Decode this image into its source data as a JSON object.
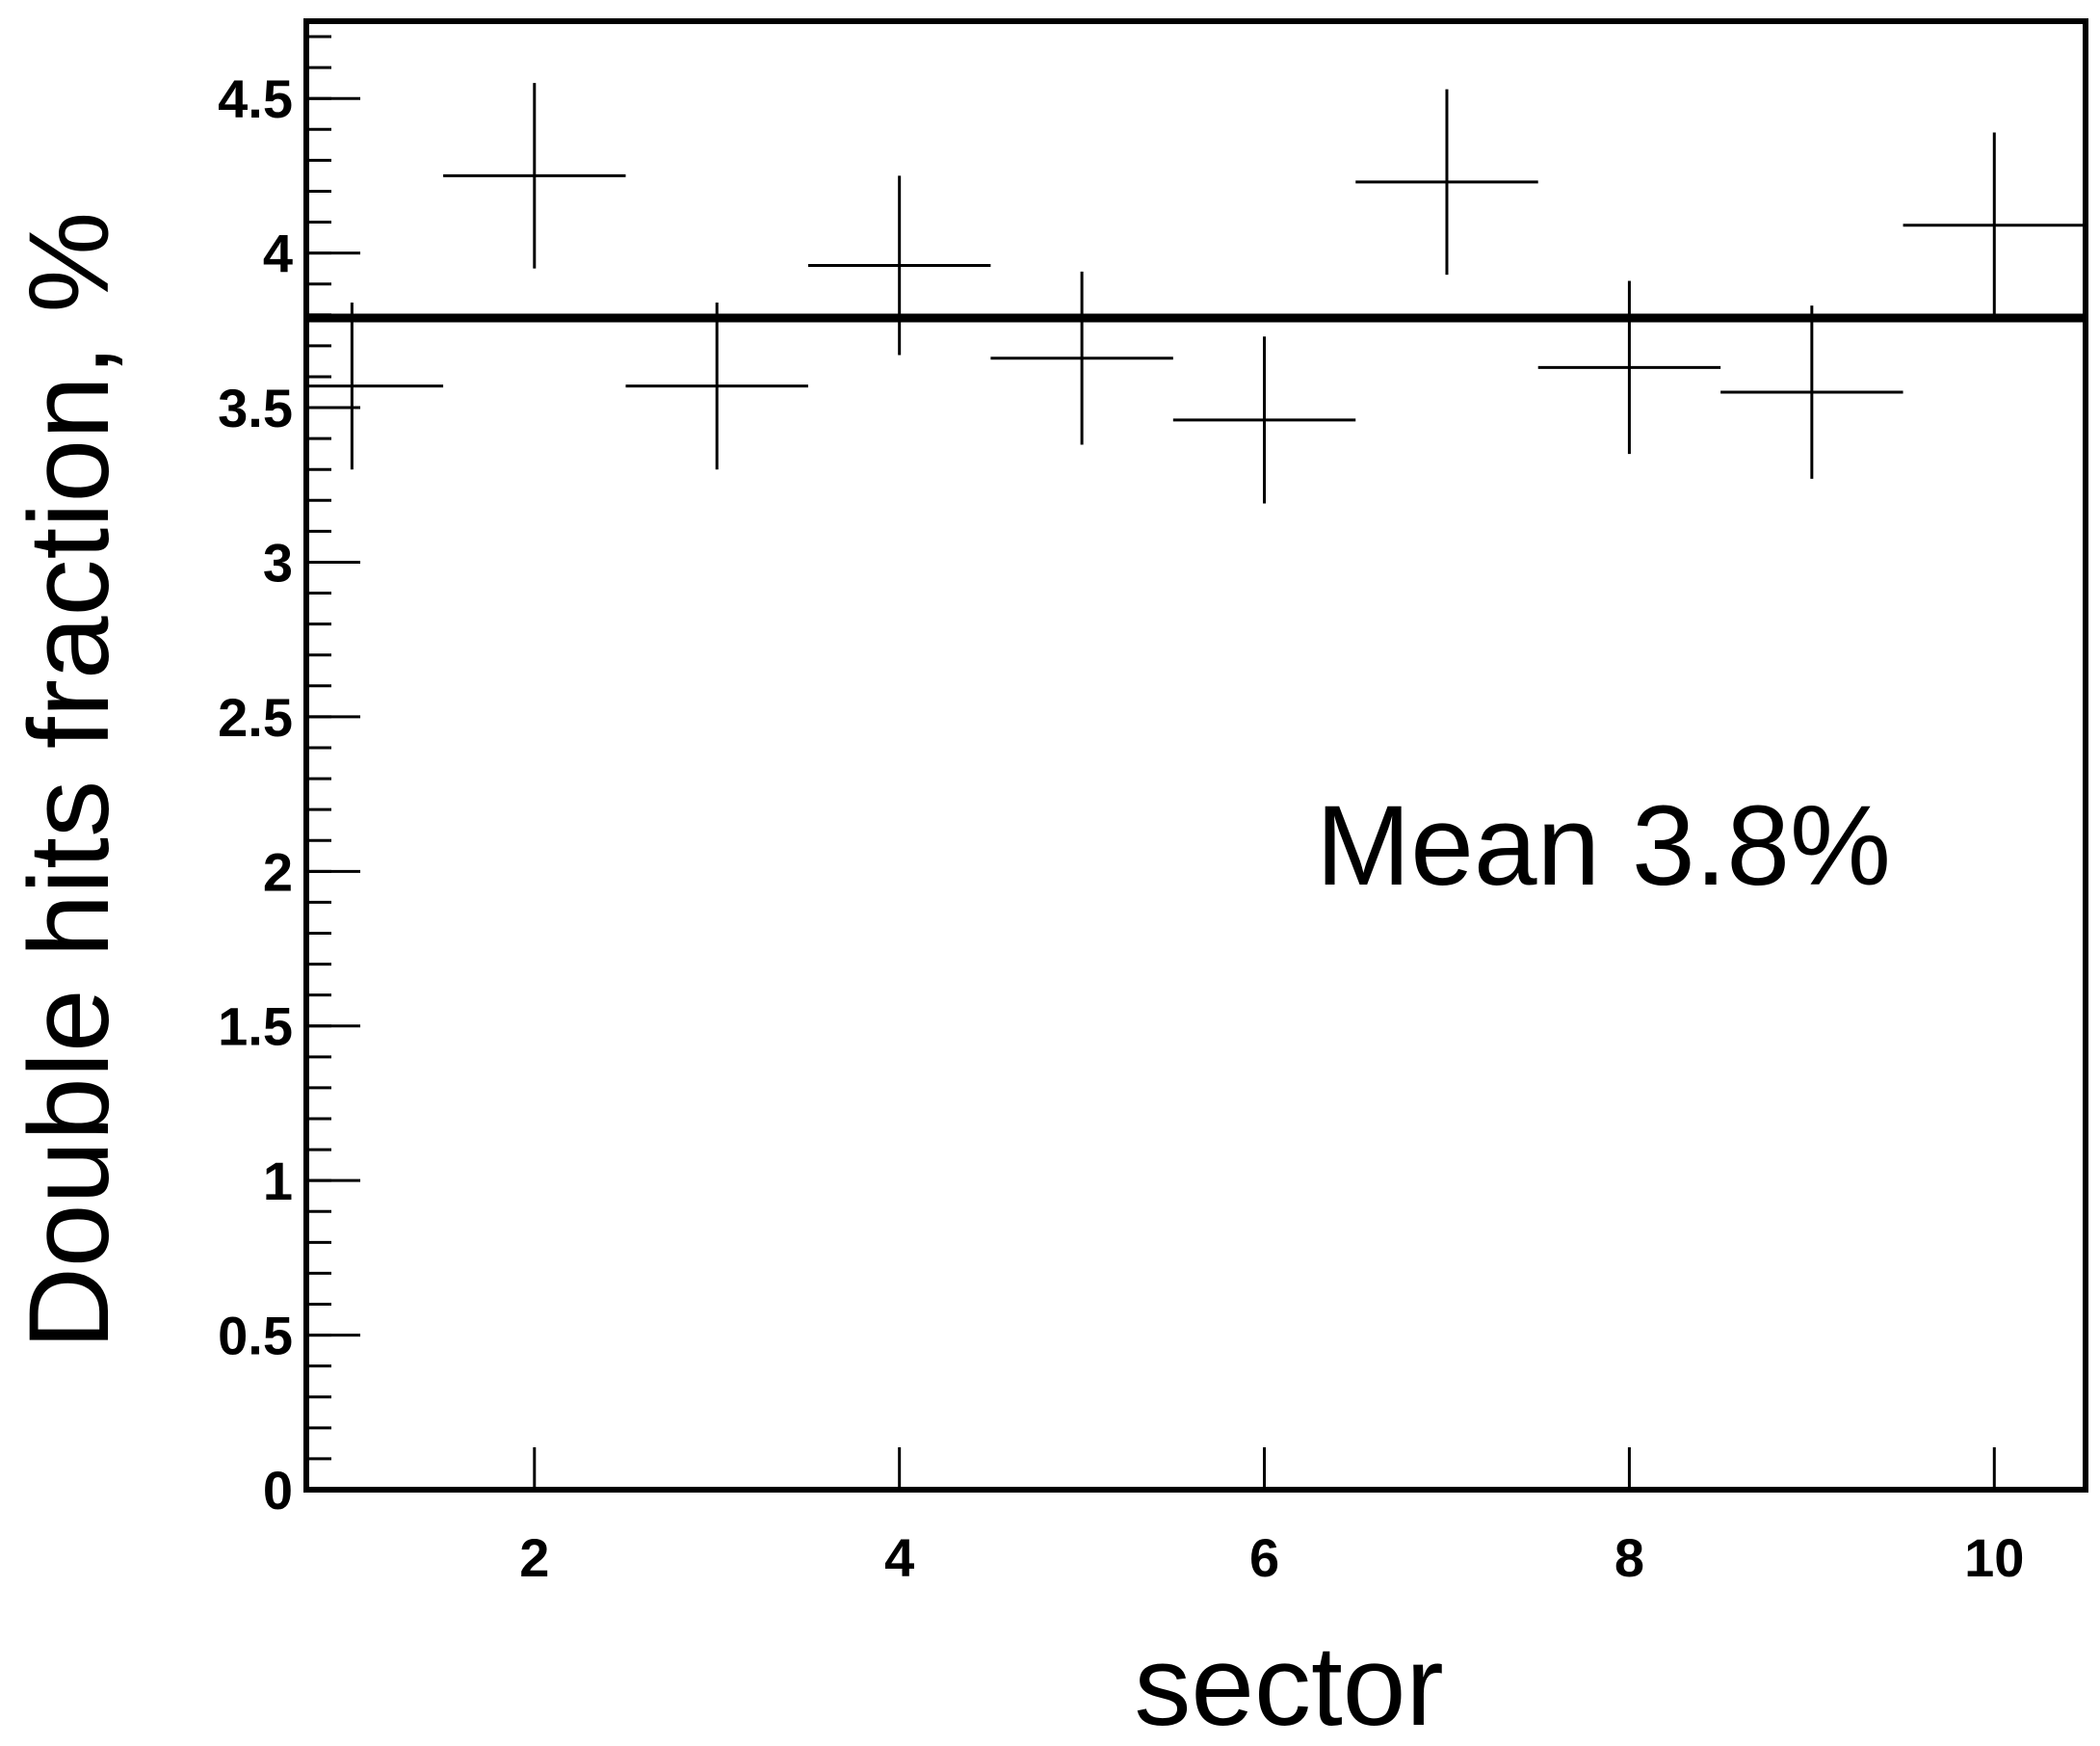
{
  "chart_data": {
    "type": "scatter",
    "title": "",
    "xlabel": "sector",
    "ylabel": "Double hits fraction, %",
    "xlim": [
      0.75,
      10.5
    ],
    "ylim": [
      0,
      4.75
    ],
    "grid": false,
    "x_ticks": [
      2,
      4,
      6,
      8,
      10
    ],
    "y_ticks": [
      0,
      0.5,
      1,
      1.5,
      2,
      2.5,
      3,
      3.5,
      4,
      4.5
    ],
    "x_tick_labels": [
      "2",
      "4",
      "6",
      "8",
      "10"
    ],
    "y_tick_labels": [
      "0",
      "0.5",
      "1",
      "1.5",
      "2",
      "2.5",
      "3",
      "3.5",
      "4",
      "4.5"
    ],
    "series": [
      {
        "x": [
          1,
          2,
          3,
          4,
          5,
          6,
          7,
          8,
          9,
          10
        ],
        "y": [
          3.57,
          4.25,
          3.57,
          3.96,
          3.66,
          3.46,
          4.23,
          3.63,
          3.55,
          4.09
        ],
        "y_err": [
          0.27,
          0.3,
          0.27,
          0.29,
          0.28,
          0.27,
          0.3,
          0.28,
          0.28,
          0.3
        ],
        "x_err": [
          0.5,
          0.5,
          0.5,
          0.5,
          0.5,
          0.5,
          0.5,
          0.5,
          0.5,
          0.5
        ]
      }
    ],
    "reference_line": {
      "y": 3.79
    },
    "annotation": "Mean 3.8%"
  }
}
